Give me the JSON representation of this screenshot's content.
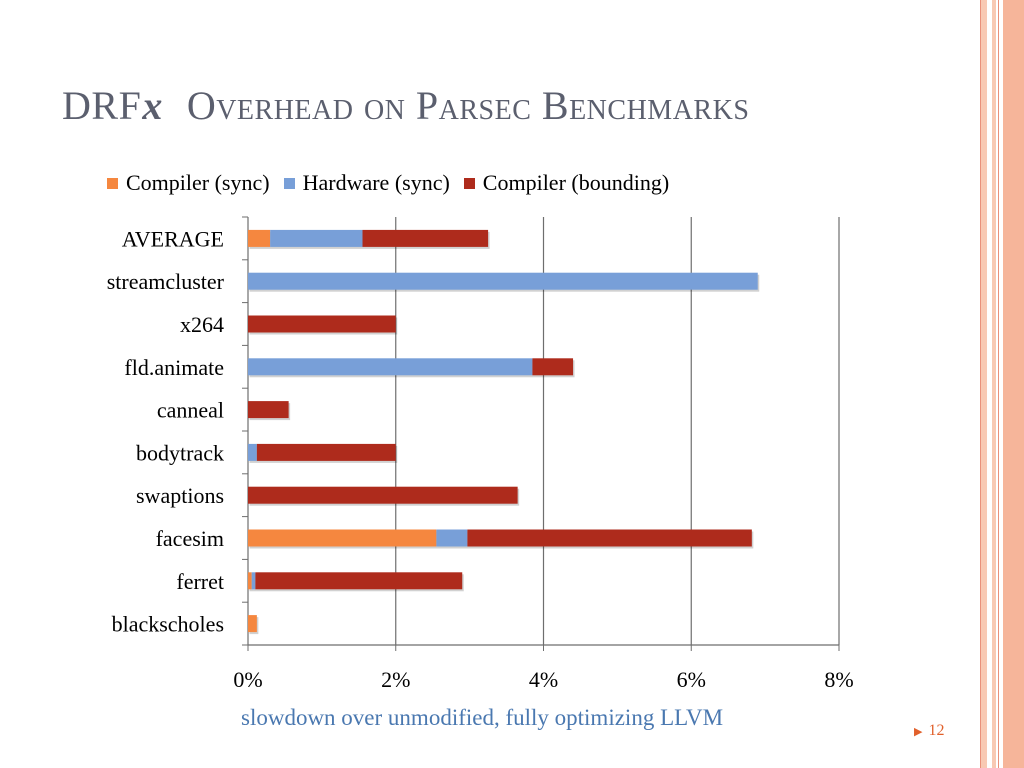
{
  "slide": {
    "title_prefix": "DRF",
    "title_var": "x",
    "title_rest": "Overhead on Parsec Benchmarks",
    "caption": "slowdown over unmodified, fully optimizing LLVM",
    "page_number": "12"
  },
  "colors": {
    "compiler_sync": "#f5873f",
    "hardware_sync": "#789fd8",
    "compiler_bounding": "#ae2b1c",
    "title": "#5b5f6e",
    "caption": "#4a78b0",
    "accent": "#e1602b"
  },
  "chart_data": {
    "type": "bar",
    "orientation": "horizontal",
    "stacked": true,
    "categories": [
      "AVERAGE",
      "streamcluster",
      "x264",
      "fld.animate",
      "canneal",
      "bodytrack",
      "swaptions",
      "facesim",
      "ferret",
      "blackscholes"
    ],
    "series": [
      {
        "name": "Compiler (sync)",
        "color": "#f5873f",
        "values": [
          0.3,
          0.0,
          0.0,
          0.0,
          0.0,
          0.0,
          0.0,
          2.55,
          0.05,
          0.12
        ]
      },
      {
        "name": "Hardware (sync)",
        "color": "#789fd8",
        "values": [
          1.25,
          6.9,
          0.0,
          3.85,
          0.0,
          0.12,
          0.0,
          0.42,
          0.05,
          0.0
        ]
      },
      {
        "name": "Compiler (bounding)",
        "color": "#ae2b1c",
        "values": [
          1.7,
          0.0,
          2.0,
          0.55,
          0.55,
          1.88,
          3.65,
          3.85,
          2.8,
          0.0
        ]
      }
    ],
    "x_ticks": [
      "0%",
      "2%",
      "4%",
      "6%",
      "8%"
    ],
    "xlim": [
      0,
      8
    ],
    "grid": true,
    "legend_position": "top"
  }
}
